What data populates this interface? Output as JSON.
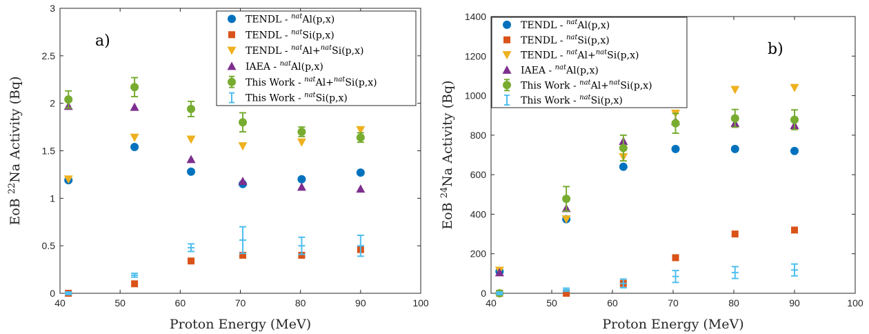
{
  "colors": {
    "tendl_al": "#0072BD",
    "tendl_si": "#D95319",
    "tendl_alsi": "#EDB120",
    "iaea_al": "#7E2F8E",
    "this_alsi": "#77AC30",
    "this_si": "#4DBEEE"
  },
  "chart_data": [
    {
      "type": "scatter",
      "panel_tag": "a)",
      "xlabel": "Proton Energy (MeV)",
      "ylabel_pre": "EoB ",
      "ylabel_sup": "22",
      "ylabel_post": "Na Activity (Bq)",
      "xlim": [
        40,
        100
      ],
      "ylim": [
        0,
        3
      ],
      "xticks": [
        40,
        50,
        60,
        70,
        80,
        90,
        100
      ],
      "yticks": [
        0,
        0.5,
        1,
        1.5,
        2,
        2.5,
        3
      ],
      "ytick_labels": [
        "0",
        "0.5",
        "1",
        "1.5",
        "2",
        "2.5",
        "3"
      ],
      "legend_position": "top-right",
      "grid": false,
      "series": [
        {
          "key": "tendl_al",
          "marker": "circle",
          "legend_pre": "TENDL - ",
          "legend_sup": "nat",
          "legend_post": "Al(p,x)",
          "x": [
            41.4,
            52.4,
            61.8,
            70.4,
            80.2,
            90.0
          ],
          "y": [
            1.19,
            1.54,
            1.28,
            1.15,
            1.2,
            1.27
          ]
        },
        {
          "key": "tendl_si",
          "marker": "square",
          "legend_pre": "TENDL - ",
          "legend_sup": "nat",
          "legend_post": "Si(p,x)",
          "x": [
            41.4,
            52.4,
            61.8,
            70.4,
            80.2,
            90.0
          ],
          "y": [
            0.0,
            0.1,
            0.34,
            0.4,
            0.4,
            0.46
          ]
        },
        {
          "key": "tendl_alsi",
          "marker": "triangle-down",
          "legend_pre": "TENDL - ",
          "legend_sup": "nat",
          "legend_mid": "Al+",
          "legend_sup2": "nat",
          "legend_post": "Si(p,x)",
          "x": [
            41.4,
            52.4,
            61.8,
            70.4,
            80.2,
            90.0
          ],
          "y": [
            1.2,
            1.64,
            1.62,
            1.55,
            1.59,
            1.72
          ]
        },
        {
          "key": "iaea_al",
          "marker": "triangle-up",
          "legend_pre": "IAEA - ",
          "legend_sup": "nat",
          "legend_post": "Al(p,x)",
          "x": [
            41.4,
            52.4,
            61.8,
            70.4,
            80.2,
            90.0
          ],
          "y": [
            1.97,
            1.96,
            1.41,
            1.18,
            1.12,
            1.1
          ]
        },
        {
          "key": "this_alsi",
          "marker": "circle-err",
          "legend_pre": "This Work - ",
          "legend_sup": "nat",
          "legend_mid": "Al+",
          "legend_sup2": "nat",
          "legend_post": "Si(p,x)",
          "x": [
            41.4,
            52.4,
            61.8,
            70.4,
            80.2,
            90.0
          ],
          "y": [
            2.04,
            2.17,
            1.94,
            1.8,
            1.7,
            1.64
          ],
          "err": [
            0.09,
            0.1,
            0.08,
            0.1,
            0.05,
            0.05
          ]
        },
        {
          "key": "this_si",
          "marker": "errbar",
          "legend_pre": "This Work - ",
          "legend_sup": "nat",
          "legend_post": "Si(p,x)",
          "x": [
            41.4,
            52.4,
            61.8,
            70.4,
            80.2,
            90.0
          ],
          "y": [
            0.0,
            0.19,
            0.48,
            0.56,
            0.5,
            0.5
          ],
          "err": [
            0.01,
            0.02,
            0.04,
            0.14,
            0.09,
            0.11
          ]
        }
      ]
    },
    {
      "type": "scatter",
      "panel_tag": "b)",
      "xlabel": "Proton Energy (MeV)",
      "ylabel_pre": "EoB ",
      "ylabel_sup": "24",
      "ylabel_post": "Na Activity (Bq)",
      "xlim": [
        40,
        100
      ],
      "ylim": [
        0,
        1400
      ],
      "xticks": [
        40,
        50,
        60,
        70,
        80,
        90,
        100
      ],
      "yticks": [
        0,
        200,
        400,
        600,
        800,
        1000,
        1200,
        1400
      ],
      "ytick_labels": [
        "0",
        "200",
        "400",
        "600",
        "800",
        "1000",
        "1200",
        "1400"
      ],
      "legend_position": "top-left",
      "grid": false,
      "series": [
        {
          "key": "tendl_al",
          "marker": "circle",
          "legend_pre": "TENDL - ",
          "legend_sup": "nat",
          "legend_post": "Al(p,x)",
          "x": [
            41.4,
            52.4,
            61.8,
            70.4,
            80.2,
            90.0
          ],
          "y": [
            110,
            375,
            640,
            730,
            730,
            720
          ]
        },
        {
          "key": "tendl_si",
          "marker": "square",
          "legend_pre": "TENDL - ",
          "legend_sup": "nat",
          "legend_post": "Si(p,x)",
          "x": [
            41.4,
            52.4,
            61.8,
            70.4,
            80.2,
            90.0
          ],
          "y": [
            0,
            0,
            50,
            180,
            300,
            320
          ]
        },
        {
          "key": "tendl_alsi",
          "marker": "triangle-down",
          "legend_pre": "TENDL - ",
          "legend_sup": "nat",
          "legend_mid": "Al+",
          "legend_sup2": "nat",
          "legend_post": "Si(p,x)",
          "x": [
            41.4,
            52.4,
            61.8,
            70.4,
            80.2,
            90.0
          ],
          "y": [
            115,
            375,
            690,
            910,
            1030,
            1040
          ]
        },
        {
          "key": "iaea_al",
          "marker": "triangle-up",
          "legend_pre": "IAEA - ",
          "legend_sup": "nat",
          "legend_post": "Al(p,x)",
          "x": [
            41.4,
            52.4,
            61.8,
            70.4,
            80.2,
            90.0
          ],
          "y": [
            105,
            430,
            770,
            870,
            860,
            850
          ]
        },
        {
          "key": "this_alsi",
          "marker": "circle-err",
          "legend_pre": "This Work - ",
          "legend_sup": "nat",
          "legend_mid": "Al+",
          "legend_sup2": "nat",
          "legend_post": "Si(p,x)",
          "x": [
            41.4,
            52.4,
            61.8,
            70.4,
            80.2,
            90.0
          ],
          "y": [
            0,
            478,
            735,
            860,
            885,
            878
          ],
          "err": [
            0,
            62,
            65,
            50,
            45,
            50
          ]
        },
        {
          "key": "this_si",
          "marker": "errbar",
          "legend_pre": "This Work - ",
          "legend_sup": "nat",
          "legend_post": "Si(p,x)",
          "x": [
            41.4,
            52.4,
            61.8,
            70.4,
            80.2,
            90.0
          ],
          "y": [
            0,
            18,
            50,
            85,
            105,
            118
          ],
          "err": [
            0,
            8,
            22,
            30,
            30,
            30
          ]
        }
      ]
    }
  ]
}
